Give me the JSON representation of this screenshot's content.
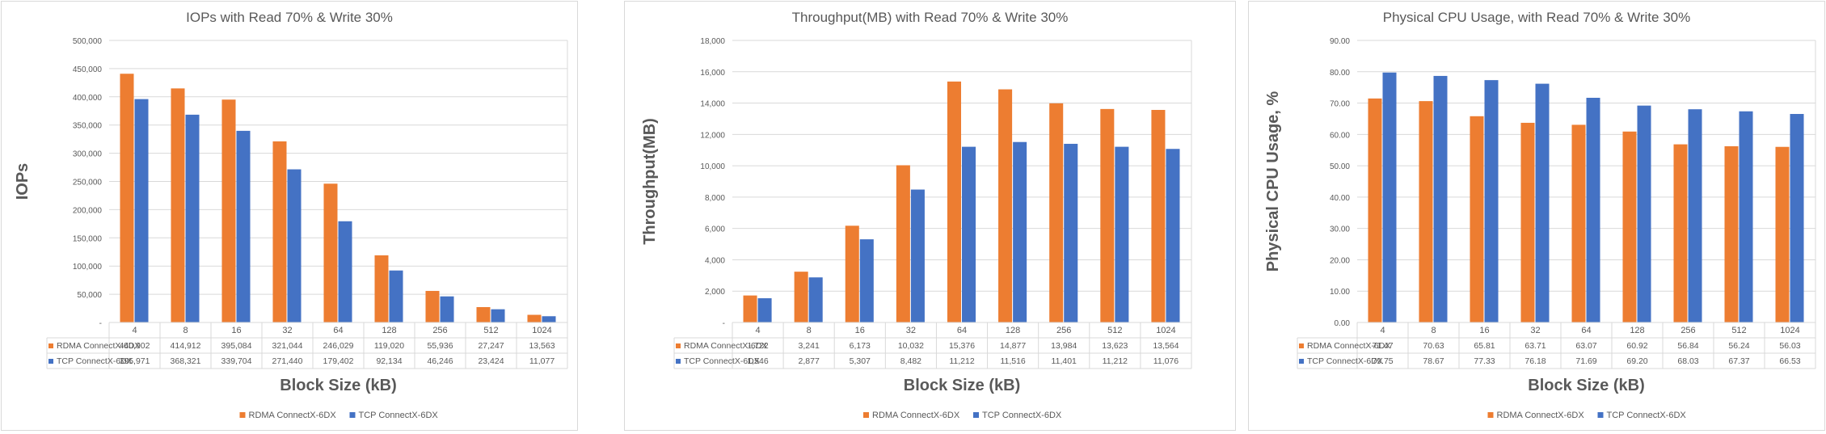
{
  "colors": {
    "rdma": "#ed7d31",
    "tcp": "#4472c4",
    "grid": "#d9d9d9",
    "text": "#595959"
  },
  "chart_data": [
    {
      "type": "bar",
      "title": "IOPs with Read 70% & Write 30%",
      "xlabel": "Block Size (kB)",
      "ylabel": "IOPs",
      "categories": [
        "4",
        "8",
        "16",
        "32",
        "64",
        "128",
        "256",
        "512",
        "1024"
      ],
      "yticks": [
        "-",
        "50,000",
        "100,000",
        "150,000",
        "200,000",
        "250,000",
        "300,000",
        "350,000",
        "400,000",
        "450,000",
        "500,000"
      ],
      "ylim": [
        0,
        500000
      ],
      "grid": true,
      "legend_position": "bottom",
      "series": [
        {
          "name": "RDMA ConnectX-6DX",
          "values": [
            440902,
            414912,
            395084,
            321044,
            246029,
            119020,
            55936,
            27247,
            13563
          ],
          "labels": [
            "440,902",
            "414,912",
            "395,084",
            "321,044",
            "246,029",
            "119,020",
            "55,936",
            "27,247",
            "13,563"
          ]
        },
        {
          "name": "TCP ConnectX-6DX",
          "values": [
            395971,
            368321,
            339704,
            271440,
            179402,
            92134,
            46246,
            23424,
            11077
          ],
          "labels": [
            "395,971",
            "368,321",
            "339,704",
            "271,440",
            "179,402",
            "92,134",
            "46,246",
            "23,424",
            "11,077"
          ]
        }
      ]
    },
    {
      "type": "bar",
      "title": "Throughput(MB) with Read 70% & Write 30%",
      "xlabel": "Block Size (kB)",
      "ylabel": "Throughput(MB)",
      "categories": [
        "4",
        "8",
        "16",
        "32",
        "64",
        "128",
        "256",
        "512",
        "1024"
      ],
      "yticks": [
        "-",
        "2,000",
        "4,000",
        "6,000",
        "8,000",
        "10,000",
        "12,000",
        "14,000",
        "16,000",
        "18,000"
      ],
      "ylim": [
        0,
        18000
      ],
      "grid": true,
      "legend_position": "bottom",
      "series": [
        {
          "name": "RDMA ConnectX-6DX",
          "values": [
            1722,
            3241,
            6173,
            10032,
            15376,
            14877,
            13984,
            13623,
            13564
          ],
          "labels": [
            "1,722",
            "3,241",
            "6,173",
            "10,032",
            "15,376",
            "14,877",
            "13,984",
            "13,623",
            "13,564"
          ]
        },
        {
          "name": "TCP ConnectX-6DX",
          "values": [
            1546,
            2877,
            5307,
            8482,
            11212,
            11516,
            11401,
            11212,
            11076
          ],
          "labels": [
            "1,546",
            "2,877",
            "5,307",
            "8,482",
            "11,212",
            "11,516",
            "11,401",
            "11,212",
            "11,076"
          ]
        }
      ]
    },
    {
      "type": "bar",
      "title": "Physical CPU Usage, with Read 70% & Write 30%",
      "xlabel": "Block Size (kB)",
      "ylabel": "Physical CPU Usage, %",
      "categories": [
        "4",
        "8",
        "16",
        "32",
        "64",
        "128",
        "256",
        "512",
        "1024"
      ],
      "yticks": [
        "0.00",
        "10.00",
        "20.00",
        "30.00",
        "40.00",
        "50.00",
        "60.00",
        "70.00",
        "80.00",
        "90.00"
      ],
      "ylim": [
        0,
        90
      ],
      "grid": true,
      "legend_position": "bottom",
      "series": [
        {
          "name": "RDMA ConnectX-6DX",
          "values": [
            71.47,
            70.63,
            65.81,
            63.71,
            63.07,
            60.92,
            56.84,
            56.24,
            56.03
          ],
          "labels": [
            "71.47",
            "70.63",
            "65.81",
            "63.71",
            "63.07",
            "60.92",
            "56.84",
            "56.24",
            "56.03"
          ]
        },
        {
          "name": "TCP ConnectX-6DX",
          "values": [
            79.75,
            78.67,
            77.33,
            76.18,
            71.69,
            69.2,
            68.03,
            67.37,
            66.53
          ],
          "labels": [
            "79.75",
            "78.67",
            "77.33",
            "76.18",
            "71.69",
            "69.20",
            "68.03",
            "67.37",
            "66.53"
          ]
        }
      ]
    }
  ]
}
